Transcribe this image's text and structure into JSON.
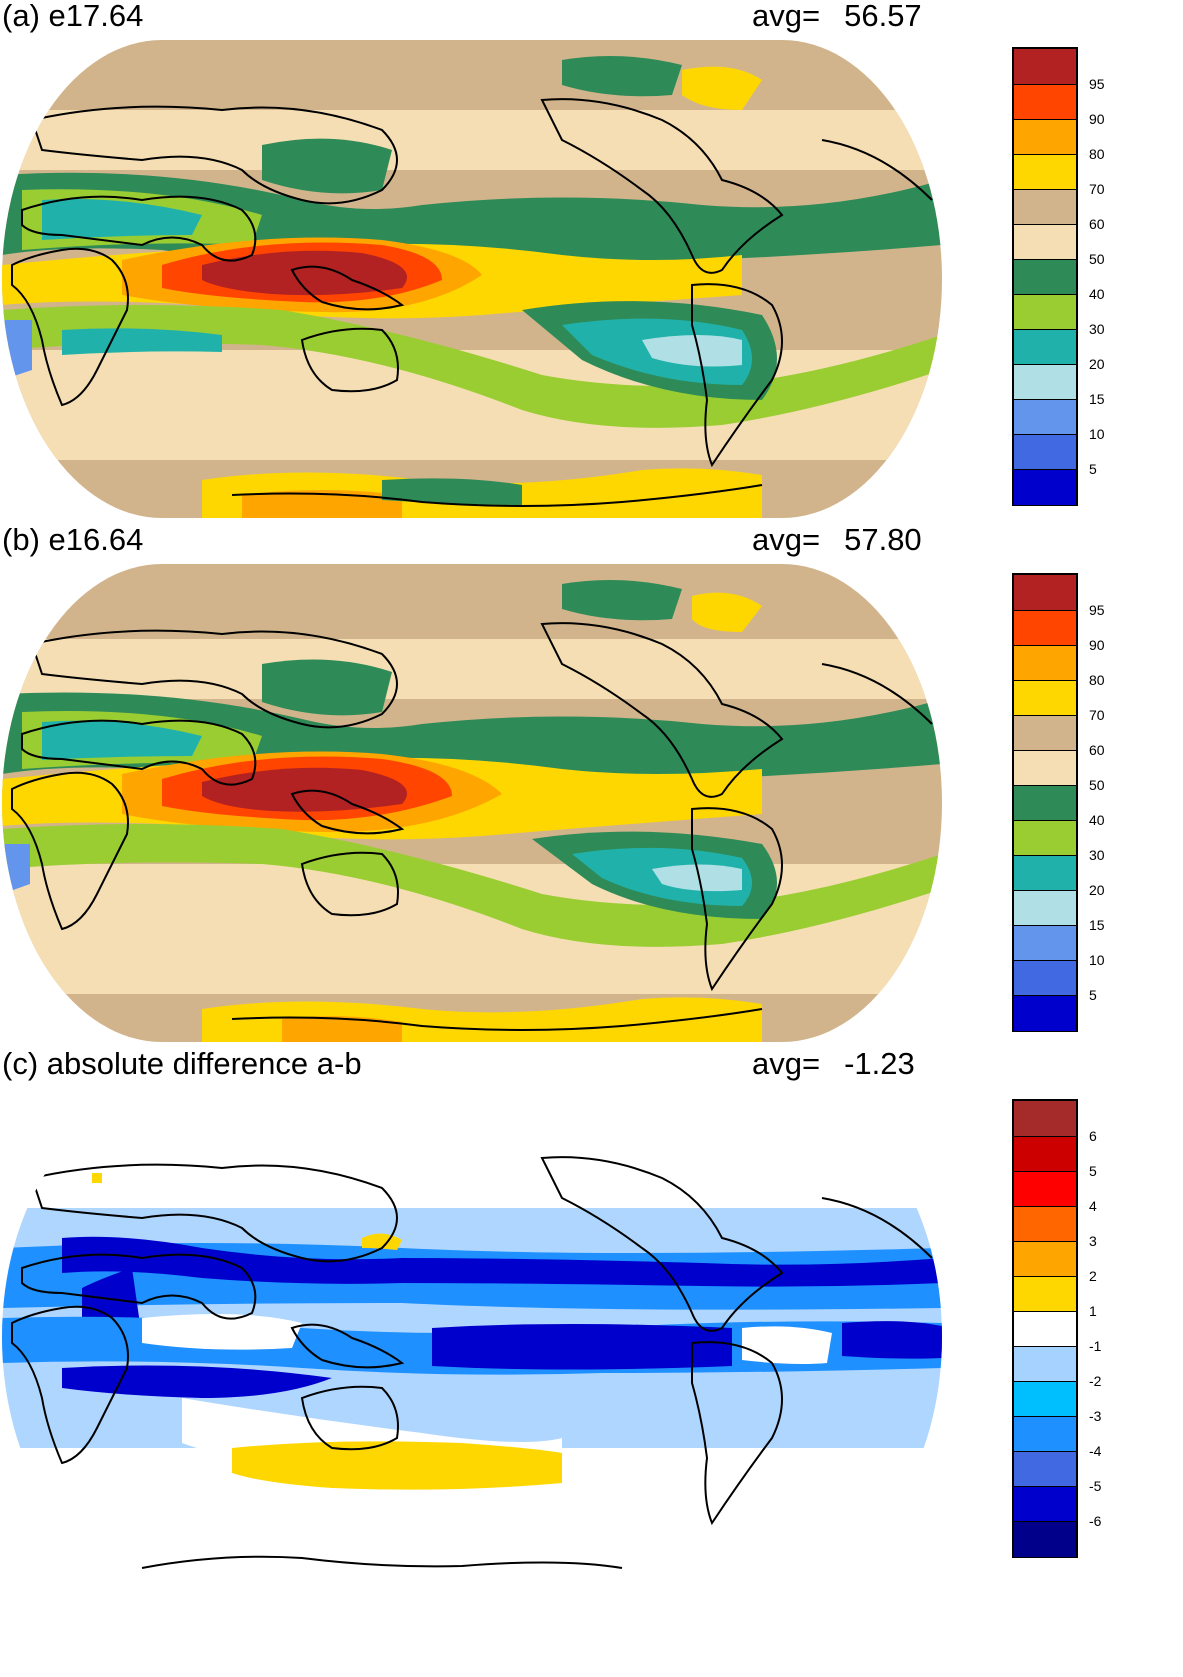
{
  "panels": [
    {
      "id": "a",
      "title": "(a) e17.64",
      "avg_label": "avg=",
      "avg_value": "56.57",
      "colorbar": {
        "labels": [
          "95",
          "90",
          "80",
          "70",
          "60",
          "50",
          "40",
          "30",
          "20",
          "15",
          "10",
          "5"
        ],
        "colors": [
          "#b22222",
          "#ff4500",
          "#ffa500",
          "#ffd700",
          "#d2b48c",
          "#f5deb3",
          "#2e8b57",
          "#9acd32",
          "#20b2aa",
          "#b0e0e6",
          "#6495ed",
          "#4169e1",
          "#0000cd"
        ]
      }
    },
    {
      "id": "b",
      "title": "(b) e16.64",
      "avg_label": "avg=",
      "avg_value": "57.80",
      "colorbar": {
        "labels": [
          "95",
          "90",
          "80",
          "70",
          "60",
          "50",
          "40",
          "30",
          "20",
          "15",
          "10",
          "5"
        ],
        "colors": [
          "#b22222",
          "#ff4500",
          "#ffa500",
          "#ffd700",
          "#d2b48c",
          "#f5deb3",
          "#2e8b57",
          "#9acd32",
          "#20b2aa",
          "#b0e0e6",
          "#6495ed",
          "#4169e1",
          "#0000cd"
        ]
      }
    },
    {
      "id": "c",
      "title": "(c) absolute difference a-b",
      "avg_label": "avg=",
      "avg_value": "-1.23",
      "colorbar": {
        "labels": [
          "6",
          "5",
          "4",
          "3",
          "2",
          "1",
          "-1",
          "-2",
          "-3",
          "-4",
          "-5",
          "-6"
        ],
        "colors": [
          "#a52a2a",
          "#cd0000",
          "#ff0000",
          "#ff6600",
          "#ffa500",
          "#ffd700",
          "#ffffff",
          "#a6d2ff",
          "#00bfff",
          "#1e90ff",
          "#4169e1",
          "#0000cd",
          "#00008b"
        ]
      }
    }
  ]
}
